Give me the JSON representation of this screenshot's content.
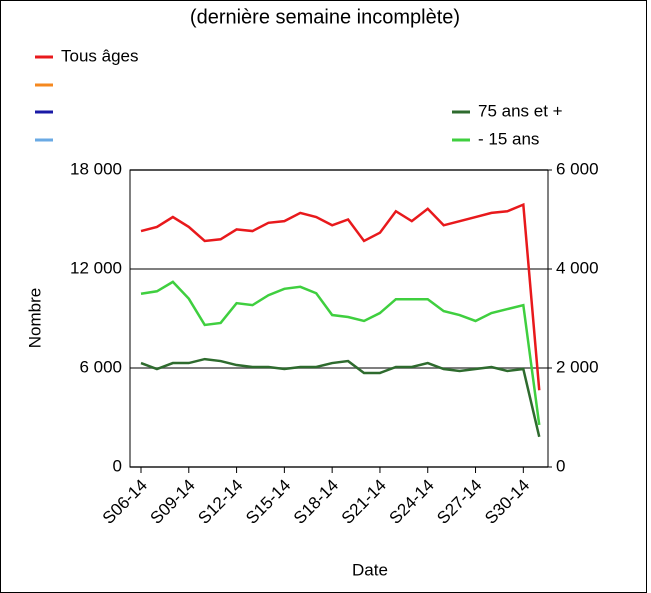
{
  "chart_data": {
    "type": "line",
    "title": "(dernière semaine incomplète)",
    "x_label": "Date",
    "y_label": "Nombre",
    "categories": [
      "S06-14",
      null,
      null,
      "S09-14",
      null,
      null,
      "S12-14",
      null,
      null,
      "S15-14",
      null,
      null,
      "S18-14",
      null,
      null,
      "S21-14",
      null,
      null,
      "S24-14",
      null,
      null,
      "S27-14",
      null,
      null,
      "S30-14",
      null
    ],
    "series": [
      {
        "name": "Tous âges",
        "color": "#e8191c",
        "values": [
          14300,
          14550,
          15150,
          14550,
          13700,
          13800,
          14400,
          14300,
          14800,
          14900,
          15400,
          15150,
          14650,
          15000,
          13700,
          14200,
          15500,
          14900,
          15650,
          14650,
          14900,
          15150,
          15400,
          15500,
          15900,
          4650
        ]
      },
      {
        "name": null,
        "color": "#f5881f",
        "values": [
          null,
          null,
          null,
          null,
          null,
          null,
          null,
          null,
          null,
          null,
          null,
          null,
          null,
          null,
          null,
          null,
          null,
          null,
          null,
          null,
          null,
          null,
          null,
          null,
          null,
          null
        ]
      },
      {
        "name": null,
        "color": "#1a1aa6",
        "values": [
          null,
          null,
          null,
          null,
          null,
          null,
          null,
          null,
          null,
          null,
          null,
          null,
          null,
          null,
          null,
          null,
          null,
          null,
          null,
          null,
          null,
          null,
          null,
          null,
          null,
          null
        ]
      },
      {
        "name": null,
        "color": "#6aaae4",
        "values": [
          null,
          null,
          null,
          null,
          null,
          null,
          null,
          null,
          null,
          null,
          null,
          null,
          null,
          null,
          null,
          null,
          null,
          null,
          null,
          null,
          null,
          null,
          null,
          null,
          null,
          null
        ]
      },
      {
        "name": "75 ans et +",
        "color": "#2e6b2e",
        "axis": "y2",
        "values": [
          2100,
          1980,
          2100,
          2100,
          2180,
          2140,
          2060,
          2020,
          2020,
          1980,
          2020,
          2020,
          2100,
          2140,
          1900,
          1900,
          2020,
          2020,
          2100,
          1980,
          1940,
          1980,
          2020,
          1940,
          1980,
          610
        ]
      },
      {
        "name": "- 15 ans",
        "color": "#3fcf3f",
        "axis": "y2",
        "values": [
          3500,
          3550,
          3740,
          3400,
          2870,
          2910,
          3310,
          3270,
          3470,
          3600,
          3640,
          3510,
          3070,
          3030,
          2950,
          3110,
          3390,
          3390,
          3390,
          3150,
          3070,
          2950,
          3110,
          3190,
          3270,
          850
        ]
      }
    ],
    "ylim": [
      0,
      18000
    ],
    "yticks": [
      0,
      {
        "value": 6000,
        "label": "6 000"
      },
      {
        "value": 12000,
        "label": "12 000"
      },
      {
        "value": 18000,
        "label": "18 000"
      }
    ],
    "y2lim": [
      0,
      6000
    ],
    "y2ticks": [
      0,
      {
        "value": 2000,
        "label": "2 000"
      },
      {
        "value": 4000,
        "label": "4 000"
      },
      {
        "value": 6000,
        "label": "6 000"
      }
    ],
    "grid": true
  }
}
